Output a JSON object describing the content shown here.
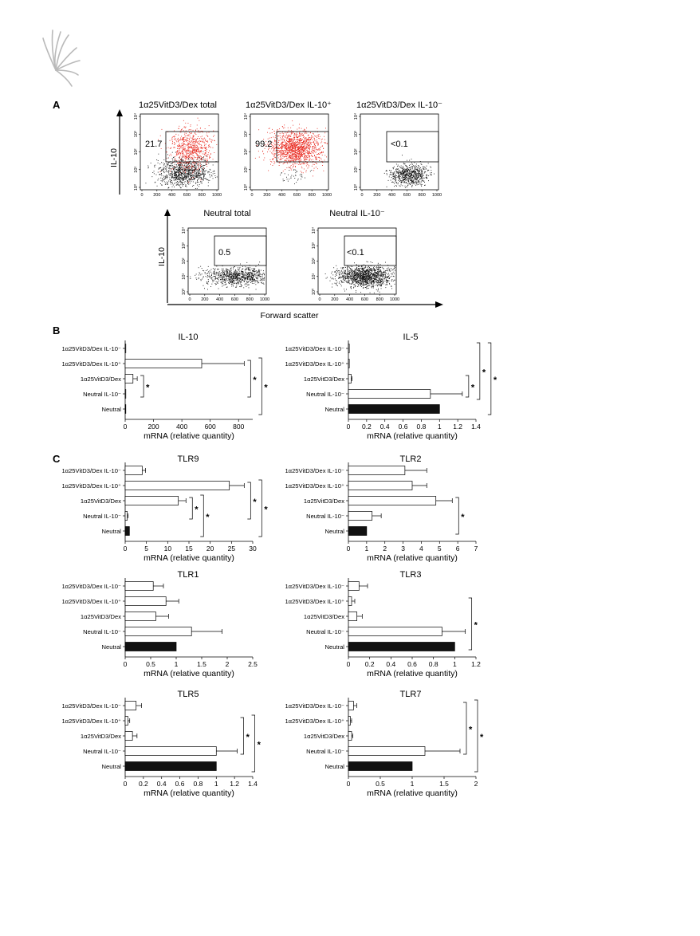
{
  "panel_labels": {
    "a": "A",
    "b": "B",
    "c": "C"
  },
  "flow": {
    "y_axis_label": "IL-10",
    "x_axis_label": "Forward scatter",
    "x_ticks": [
      "0",
      "200",
      "400",
      "600",
      "800",
      "1000"
    ],
    "y_ticks": [
      "10⁰",
      "10¹",
      "10²",
      "10³",
      "10⁴"
    ],
    "plots": [
      {
        "title": "1α25VitD3/Dex total",
        "gate_value": "21.7",
        "has_red": true
      },
      {
        "title": "1α25VitD3/Dex IL-10⁺",
        "gate_value": "99.2",
        "has_red": true
      },
      {
        "title": "1α25VitD3/Dex IL-10⁻",
        "gate_value": "<0.1",
        "has_red": false
      },
      {
        "title": "Neutral total",
        "gate_value": "0.5",
        "has_red": false
      },
      {
        "title": "Neutral IL-10⁻",
        "gate_value": "<0.1",
        "has_red": false
      }
    ]
  },
  "chart_data": [
    {
      "type": "bar",
      "title": "IL-10",
      "xlabel": "mRNA (relative quantity)",
      "categories": [
        "1α25VitD3/Dex IL-10⁻",
        "1α25VitD3/Dex IL-10⁺",
        "1α25VitD3/Dex",
        "Neutral IL-10⁻",
        "Neutral"
      ],
      "values": [
        1,
        540,
        55,
        1,
        1
      ],
      "errors": [
        0,
        300,
        30,
        0,
        0
      ],
      "filled": [
        false,
        false,
        false,
        false,
        true
      ],
      "xlim": [
        0,
        900
      ],
      "ticks": [
        "0",
        "200",
        "400",
        "600",
        "800"
      ],
      "tick_values": [
        0,
        200,
        400,
        600,
        800
      ],
      "significance": [
        {
          "from": 2,
          "to": 3,
          "label": "*",
          "level": 0
        },
        {
          "from": 1,
          "to": 3,
          "label": "*",
          "level": 0
        },
        {
          "from": 1,
          "to": 4,
          "label": "*",
          "level": 1
        }
      ]
    },
    {
      "type": "bar",
      "title": "IL-5",
      "xlabel": "mRNA (relative quantity)",
      "categories": [
        "1α25VitD3/Dex IL-10⁻",
        "1α25VitD3/Dex IL-10⁺",
        "1α25VitD3/Dex",
        "Neutral IL-10⁻",
        "Neutral"
      ],
      "values": [
        0.01,
        0.01,
        0.03,
        0.9,
        1.0
      ],
      "errors": [
        0,
        0,
        0.01,
        0.35,
        0
      ],
      "filled": [
        false,
        false,
        false,
        false,
        true
      ],
      "xlim": [
        0,
        1.4
      ],
      "ticks": [
        "0",
        "0.2",
        "0.4",
        "0.6",
        "0.8",
        "1",
        "1.2",
        "1.4"
      ],
      "tick_values": [
        0,
        0.2,
        0.4,
        0.6,
        0.8,
        1,
        1.2,
        1.4
      ],
      "significance": [
        {
          "from": 2,
          "to": 3,
          "label": "*",
          "level": 0
        },
        {
          "from": 0,
          "to": 3,
          "label": "*",
          "level": 1
        },
        {
          "from": 0,
          "to": 4,
          "label": "*",
          "level": 2
        }
      ]
    },
    {
      "type": "bar",
      "title": "TLR9",
      "xlabel": "mRNA (relative quantity)",
      "categories": [
        "1α25VitD3/Dex IL-10⁻",
        "1α25VitD3/Dex IL-10⁺",
        "1α25VitD3/Dex",
        "Neutral IL-10⁻",
        "Neutral"
      ],
      "values": [
        4,
        24.5,
        12.5,
        0.5,
        1
      ],
      "errors": [
        0.8,
        3.5,
        1.8,
        0.2,
        0
      ],
      "filled": [
        false,
        false,
        false,
        false,
        true
      ],
      "xlim": [
        0,
        30
      ],
      "ticks": [
        "0",
        "5",
        "10",
        "15",
        "20",
        "25",
        "30"
      ],
      "tick_values": [
        0,
        5,
        10,
        15,
        20,
        25,
        30
      ],
      "significance": [
        {
          "from": 2,
          "to": 3,
          "label": "*",
          "level": 0
        },
        {
          "from": 2,
          "to": 4,
          "label": "*",
          "level": 1
        },
        {
          "from": 1,
          "to": 3,
          "label": "*",
          "level": 0
        },
        {
          "from": 1,
          "to": 4,
          "label": "*",
          "level": 1
        }
      ]
    },
    {
      "type": "bar",
      "title": "TLR2",
      "xlabel": "mRNA (relative quantity)",
      "categories": [
        "1α25VitD3/Dex IL-10⁻",
        "1α25VitD3/Dex IL-10⁺",
        "1α25VitD3/Dex",
        "Neutral IL-10⁻",
        "Neutral"
      ],
      "values": [
        3.1,
        3.5,
        4.8,
        1.3,
        1
      ],
      "errors": [
        1.2,
        0.8,
        0.9,
        0.5,
        0
      ],
      "filled": [
        false,
        false,
        false,
        false,
        true
      ],
      "xlim": [
        0,
        7
      ],
      "ticks": [
        "0",
        "1",
        "2",
        "3",
        "4",
        "5",
        "6",
        "7"
      ],
      "tick_values": [
        0,
        1,
        2,
        3,
        4,
        5,
        6,
        7
      ],
      "significance": [
        {
          "from": 2,
          "to": 4,
          "label": "*",
          "level": 0
        }
      ]
    },
    {
      "type": "bar",
      "title": "TLR1",
      "xlabel": "mRNA (relative quantity)",
      "categories": [
        "1α25VitD3/Dex IL-10⁻",
        "1α25VitD3/Dex IL-10⁺",
        "1α25VitD3/Dex",
        "Neutral IL-10⁻",
        "Neutral"
      ],
      "values": [
        0.55,
        0.8,
        0.6,
        1.3,
        1
      ],
      "errors": [
        0.2,
        0.25,
        0.25,
        0.6,
        0
      ],
      "filled": [
        false,
        false,
        false,
        false,
        true
      ],
      "xlim": [
        0,
        2.5
      ],
      "ticks": [
        "0",
        "0.5",
        "1",
        "1.5",
        "2",
        "2.5"
      ],
      "tick_values": [
        0,
        0.5,
        1,
        1.5,
        2,
        2.5
      ],
      "significance": []
    },
    {
      "type": "bar",
      "title": "TLR3",
      "xlabel": "mRNA (relative quantity)",
      "categories": [
        "1α25VitD3/Dex IL-10⁻",
        "1α25VitD3/Dex IL-10⁺",
        "1α25VitD3/Dex",
        "Neutral IL-10⁻",
        "Neutral"
      ],
      "values": [
        0.1,
        0.03,
        0.08,
        0.88,
        1.0
      ],
      "errors": [
        0.08,
        0.03,
        0.05,
        0.22,
        0
      ],
      "filled": [
        false,
        false,
        false,
        false,
        true
      ],
      "xlim": [
        0,
        1.2
      ],
      "ticks": [
        "0",
        "0.2",
        "0.4",
        "0.6",
        "0.8",
        "1",
        "1.2"
      ],
      "tick_values": [
        0,
        0.2,
        0.4,
        0.6,
        0.8,
        1,
        1.2
      ],
      "significance": [
        {
          "from": 1,
          "to": 4,
          "label": "*",
          "level": 0
        }
      ]
    },
    {
      "type": "bar",
      "title": "TLR5",
      "xlabel": "mRNA (relative quantity)",
      "categories": [
        "1α25VitD3/Dex IL-10⁻",
        "1α25VitD3/Dex IL-10⁺",
        "1α25VitD3/Dex",
        "Neutral IL-10⁻",
        "Neutral"
      ],
      "values": [
        0.12,
        0.03,
        0.08,
        1.0,
        1.0
      ],
      "errors": [
        0.06,
        0.02,
        0.05,
        0.23,
        0
      ],
      "filled": [
        false,
        false,
        false,
        false,
        true
      ],
      "xlim": [
        0,
        1.4
      ],
      "ticks": [
        "0",
        "0.2",
        "0.4",
        "0.6",
        "0.8",
        "1",
        "1.2",
        "1.4"
      ],
      "tick_values": [
        0,
        0.2,
        0.4,
        0.6,
        0.8,
        1,
        1.2,
        1.4
      ],
      "significance": [
        {
          "from": 1,
          "to": 3,
          "label": "*",
          "level": 0
        },
        {
          "from": 1,
          "to": 4,
          "label": "*",
          "level": 1
        }
      ]
    },
    {
      "type": "bar",
      "title": "TLR7",
      "xlabel": "mRNA (relative quantity)",
      "categories": [
        "1α25VitD3/Dex IL-10⁻",
        "1α25VitD3/Dex IL-10⁺",
        "1α25VitD3/Dex",
        "Neutral IL-10⁻",
        "Neutral"
      ],
      "values": [
        0.08,
        0.03,
        0.05,
        1.2,
        1.0
      ],
      "errors": [
        0.05,
        0.02,
        0.02,
        0.55,
        0
      ],
      "filled": [
        false,
        false,
        false,
        false,
        true
      ],
      "xlim": [
        0,
        2
      ],
      "ticks": [
        "0",
        "0.5",
        "1",
        "1.5",
        "2"
      ],
      "tick_values": [
        0,
        0.5,
        1,
        1.5,
        2
      ],
      "significance": [
        {
          "from": 0,
          "to": 3,
          "label": "*",
          "level": 0
        },
        {
          "from": 0,
          "to": 4,
          "label": "*",
          "level": 1
        }
      ]
    }
  ]
}
